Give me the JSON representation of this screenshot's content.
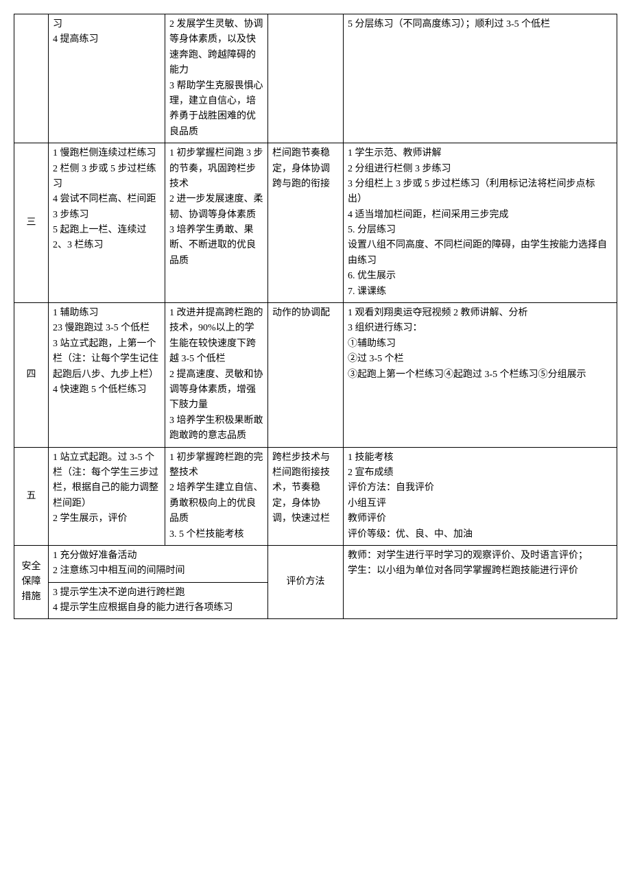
{
  "rows": [
    {
      "num": "",
      "a": "习\n4 提高练习",
      "b": "2 发展学生灵敏、协调等身体素质，以及快速奔跑、跨越障碍的能力\n3 帮助学生克服畏惧心理，建立自信心，培养勇于战胜困难的优良品质",
      "c": "",
      "d": "5 分层练习（不同高度练习）；顺利过 3-5 个低栏"
    },
    {
      "num": "三",
      "a": "1 慢跑栏侧连续过栏练习\n2 栏侧 3 步或 5 步过栏练习\n4 尝试不同栏高、栏间距 3 步练习\n5 起跑上一栏、连续过 2、3 栏练习",
      "b": "1 初步掌握栏间跑 3 步的节奏，巩固跨栏步技术\n2 进一步发展速度、柔韧、协调等身体素质\n3 培养学生勇敢、果断、不断进取的优良品质",
      "c": "栏间跑节奏稳定，身体协调跨与跑的衔接",
      "d": "1 学生示范、教师讲解\n2 分组进行栏侧 3 步练习\n3 分组栏上 3 步或 5 步过栏练习（利用标记法将栏间步点标出）\n4 适当增加栏间距，栏间采用三步完成\n5. 分层练习\n设置八组不同高度、不同栏间距的障碍，由学生按能力选择自由练习\n6. 优生展示\n7. 课课练"
    },
    {
      "num": "四",
      "a": "1 辅助练习\n23 慢跑跑过 3-5 个低栏\n3 站立式起跑，上第一个栏（注：让每个学生记住起跑后八步、九步上栏）\n4 快速跑 5 个低栏练习",
      "b": "1 改进并提高跨栏跑的技术，90%以上的学生能在较快速度下跨越 3-5 个低栏\n2 提高速度、灵敏和协调等身体素质，增强下肢力量\n3 培养学生积极果断敢跑敢跨的意志品质",
      "c": "动作的协调配",
      "d": "1 观看刘翔奥运夺冠视频 2 教师讲解、分析\n3 组织进行练习：\n①辅助练习\n②过 3-5 个栏\n③起跑上第一个栏练习④起跑过 3-5 个栏练习⑤分组展示"
    },
    {
      "num": "五",
      "a": "1 站立式起跑。过 3-5 个栏（注：每个学生三步过栏，根据自己的能力调整栏间距）\n2 学生展示，评价",
      "b": "1 初步掌握跨栏跑的完整技术\n2 培养学生建立自信、勇敢积极向上的优良品质\n3. 5 个栏技能考核",
      "c": "跨栏步技术与栏间跑衔接技术，节奏稳定，身体协调，快速过栏",
      "d": "1 技能考核\n2 宣布成绩\n评价方法：自我评价\n小组互评\n教师评价\n评价等级：优、良、中、加油"
    }
  ],
  "bottom": {
    "left_label": "安全保障措施",
    "left_content_1": "1 充分做好准备活动\n2 注意练习中相互间的间隔时间",
    "left_content_2": "3 提示学生决不逆向进行跨栏跑\n4 提示学生应根据自身的能力进行各项练习",
    "mid_label": "评价方法",
    "right_content": "教师：对学生进行平时学习的观察评价、及时语言评价；\n学生：以小组为单位对各同学掌握跨栏跑技能进行评价"
  }
}
